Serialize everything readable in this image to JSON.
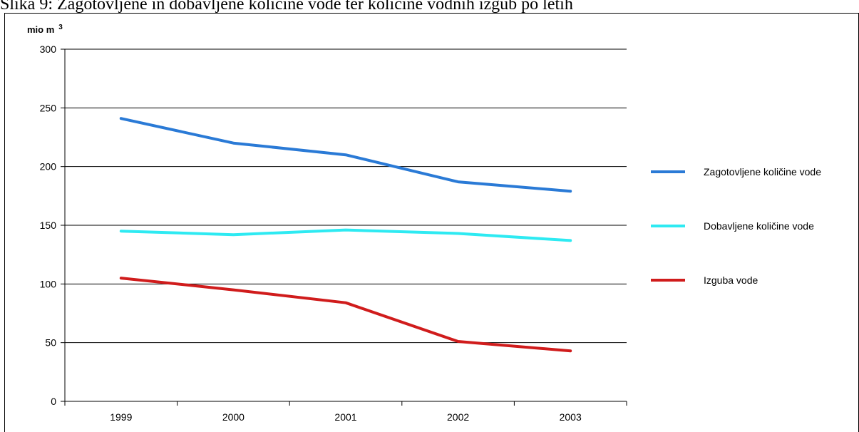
{
  "caption": "Slika 9: Zagotovljene in dobavljene količine vode ter količine vodnih izgub po letih",
  "chart_data": {
    "type": "line",
    "title": "",
    "xlabel": "",
    "ylabel": "mio m",
    "ylabel_superscript": "3",
    "categories": [
      "1999",
      "2000",
      "2001",
      "2002",
      "2003"
    ],
    "ylim": [
      0,
      300
    ],
    "yticks": [
      "0",
      "50",
      "100",
      "150",
      "200",
      "250",
      "300"
    ],
    "grid": "horizontal",
    "legend_position": "right",
    "series": [
      {
        "name": "Zagotovljene količine vode",
        "color": "#2a7ad6",
        "values": [
          241,
          220,
          210,
          187,
          179
        ]
      },
      {
        "name": "Dobavljene količine vode",
        "color": "#2eeaf2",
        "values": [
          145,
          142,
          146,
          143,
          137
        ]
      },
      {
        "name": "Izguba vode",
        "color": "#d01c1c",
        "values": [
          105,
          95,
          84,
          51,
          43
        ]
      }
    ]
  }
}
